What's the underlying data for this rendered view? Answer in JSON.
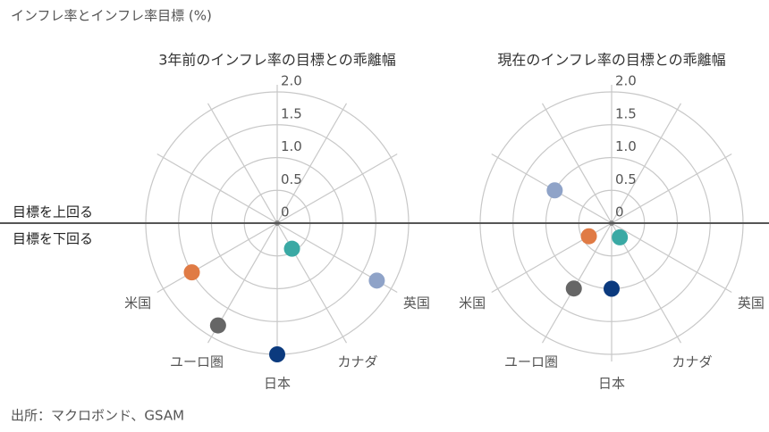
{
  "title": "インフレ率とインフレ率目標 (%)",
  "source": "出所：マクロボンド、GSAM",
  "annotations": [
    "目標を上回る",
    "目標を下回る"
  ],
  "chart_data": [
    {
      "type": "polar",
      "title": "3年前のインフレ率の目標との乖離幅",
      "categories": [
        "米国",
        "ユーロ圏",
        "日本",
        "カナダ",
        "英国"
      ],
      "values": [
        -1.5,
        -1.8,
        -2.0,
        -0.45,
        -1.75
      ],
      "colors": [
        "#e07b45",
        "#666666",
        "#0b3a7e",
        "#3aa9a4",
        "#8fa3c8"
      ],
      "rlim": [
        0,
        2
      ],
      "rticks": [
        0,
        0.5,
        {
          "value": 1,
          "label": "1.0"
        },
        1.5,
        {
          "value": 2,
          "label": "2.0"
        }
      ]
    },
    {
      "type": "polar",
      "title": "現在のインフレ率の目標との乖離幅",
      "categories": [
        "米国",
        "ユーロ圏",
        "日本",
        "カナダ",
        "英国"
      ],
      "values": [
        -0.4,
        -1.15,
        -1.0,
        -0.25,
        1.0
      ],
      "colors": [
        "#e07b45",
        "#666666",
        "#0b3a7e",
        "#3aa9a4",
        "#8fa3c8"
      ],
      "rlim": [
        0,
        2
      ],
      "rticks": [
        0,
        0.5,
        {
          "value": 1,
          "label": "1.0"
        },
        1.5,
        {
          "value": 2,
          "label": "2.0"
        }
      ]
    }
  ]
}
